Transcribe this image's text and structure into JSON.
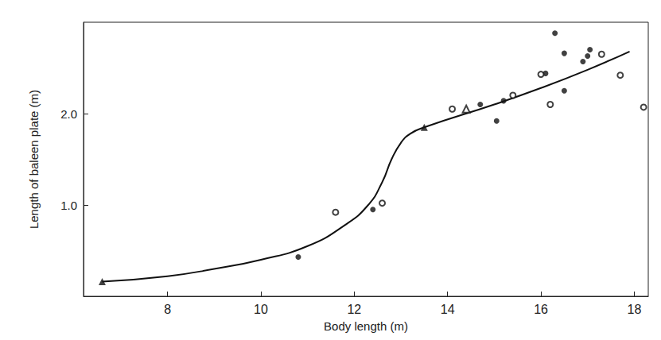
{
  "chart_data": {
    "type": "scatter",
    "x_label": "Body length (m)",
    "y_label": "Length of baleen plate (m)",
    "xlim": [
      6.2,
      18.3
    ],
    "ylim": [
      0,
      3.0
    ],
    "xticks": [
      8,
      10,
      12,
      14,
      16,
      18
    ],
    "yticks": [
      {
        "value": 1,
        "label": "1.0"
      },
      {
        "value": 2,
        "label": "2.0"
      }
    ],
    "grid": false,
    "series": [
      {
        "type": "scatter",
        "marker": "circle",
        "color": "#111111",
        "x": [
          10.8,
          12.4,
          14.7,
          15.05,
          15.2,
          16.1,
          16.3,
          16.5,
          16.5,
          16.9,
          17.0,
          17.05
        ],
        "values": [
          0.43,
          0.95,
          2.1,
          1.92,
          2.14,
          2.44,
          2.88,
          2.66,
          2.25,
          2.57,
          2.63,
          2.7
        ]
      },
      {
        "type": "scatter",
        "marker": "circle-open",
        "color": "#111111",
        "x": [
          11.6,
          12.6,
          14.1,
          15.4,
          16.0,
          16.2,
          17.3,
          17.7,
          18.2
        ],
        "values": [
          0.92,
          1.02,
          2.05,
          2.2,
          2.43,
          2.1,
          2.65,
          2.42,
          2.07
        ]
      },
      {
        "type": "scatter",
        "marker": "triangle",
        "color": "#111111",
        "x": [
          6.6,
          13.5
        ],
        "values": [
          0.16,
          1.85
        ]
      },
      {
        "type": "scatter",
        "marker": "triangle-open",
        "color": "#111111",
        "x": [
          14.4
        ],
        "values": [
          2.05
        ]
      },
      {
        "type": "line",
        "line_style": "solid",
        "color": "#111111",
        "x": [
          6.6,
          8,
          9,
          10,
          11,
          11.8,
          12.3,
          12.6,
          12.8,
          13.0,
          13.2,
          13.5,
          15,
          16,
          17,
          17.9
        ],
        "values": [
          0.16,
          0.22,
          0.3,
          0.4,
          0.55,
          0.78,
          1.0,
          1.25,
          1.5,
          1.68,
          1.78,
          1.85,
          2.1,
          2.28,
          2.48,
          2.68
        ]
      }
    ]
  }
}
